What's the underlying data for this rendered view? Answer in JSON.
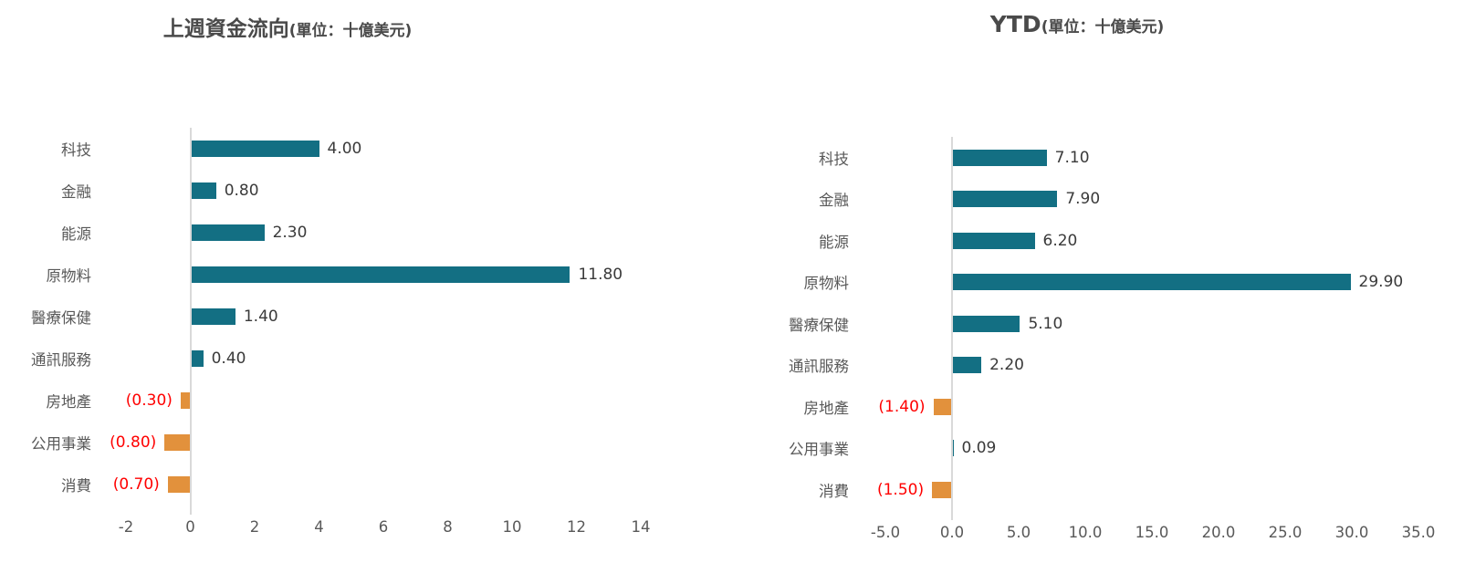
{
  "colors": {
    "positive_bar": "#136F83",
    "negative_bar": "#E2913C",
    "negative_value_label": "#FF0000",
    "value_label": "#3A3A3A",
    "category_label": "#595959",
    "axis_label": "#595959",
    "axis_line": "#D9D9D9"
  },
  "chart_data": [
    {
      "type": "bar",
      "orientation": "horizontal",
      "title": "上週資金流向",
      "title_unit": "(單位：十億美元)",
      "categories": [
        "科技",
        "金融",
        "能源",
        "原物料",
        "醫療保健",
        "通訊服務",
        "房地產",
        "公用事業",
        "消費"
      ],
      "values": [
        4.0,
        0.8,
        2.3,
        11.8,
        1.4,
        0.4,
        -0.3,
        -0.8,
        -0.7
      ],
      "value_labels": [
        "4.00",
        "0.80",
        "2.30",
        "11.80",
        "1.40",
        "0.40",
        "(0.30)",
        "(0.80)",
        "(0.70)"
      ],
      "xlim": [
        -2,
        14
      ],
      "x_tick_values": [
        -2,
        0,
        2,
        4,
        6,
        8,
        10,
        12,
        14
      ],
      "x_ticks": [
        "-2",
        "0",
        "2",
        "4",
        "6",
        "8",
        "10",
        "12",
        "14"
      ],
      "grid": false,
      "legend": "none",
      "negative_format": "parentheses-red"
    },
    {
      "type": "bar",
      "orientation": "horizontal",
      "title": "YTD",
      "title_unit": "(單位：十億美元)",
      "categories": [
        "科技",
        "金融",
        "能源",
        "原物料",
        "醫療保健",
        "通訊服務",
        "房地產",
        "公用事業",
        "消費"
      ],
      "values": [
        7.1,
        7.9,
        6.2,
        29.9,
        5.1,
        2.2,
        -1.4,
        0.09,
        -1.5
      ],
      "value_labels": [
        "7.10",
        "7.90",
        "6.20",
        "29.90",
        "5.10",
        "2.20",
        "(1.40)",
        "0.09",
        "(1.50)"
      ],
      "xlim": [
        -5,
        35
      ],
      "x_tick_values": [
        -5,
        0,
        5,
        10,
        15,
        20,
        25,
        30,
        35
      ],
      "x_ticks": [
        "-5.0",
        "0.0",
        "5.0",
        "10.0",
        "15.0",
        "20.0",
        "25.0",
        "30.0",
        "35.0"
      ],
      "grid": false,
      "legend": "none",
      "negative_format": "parentheses-red"
    }
  ]
}
